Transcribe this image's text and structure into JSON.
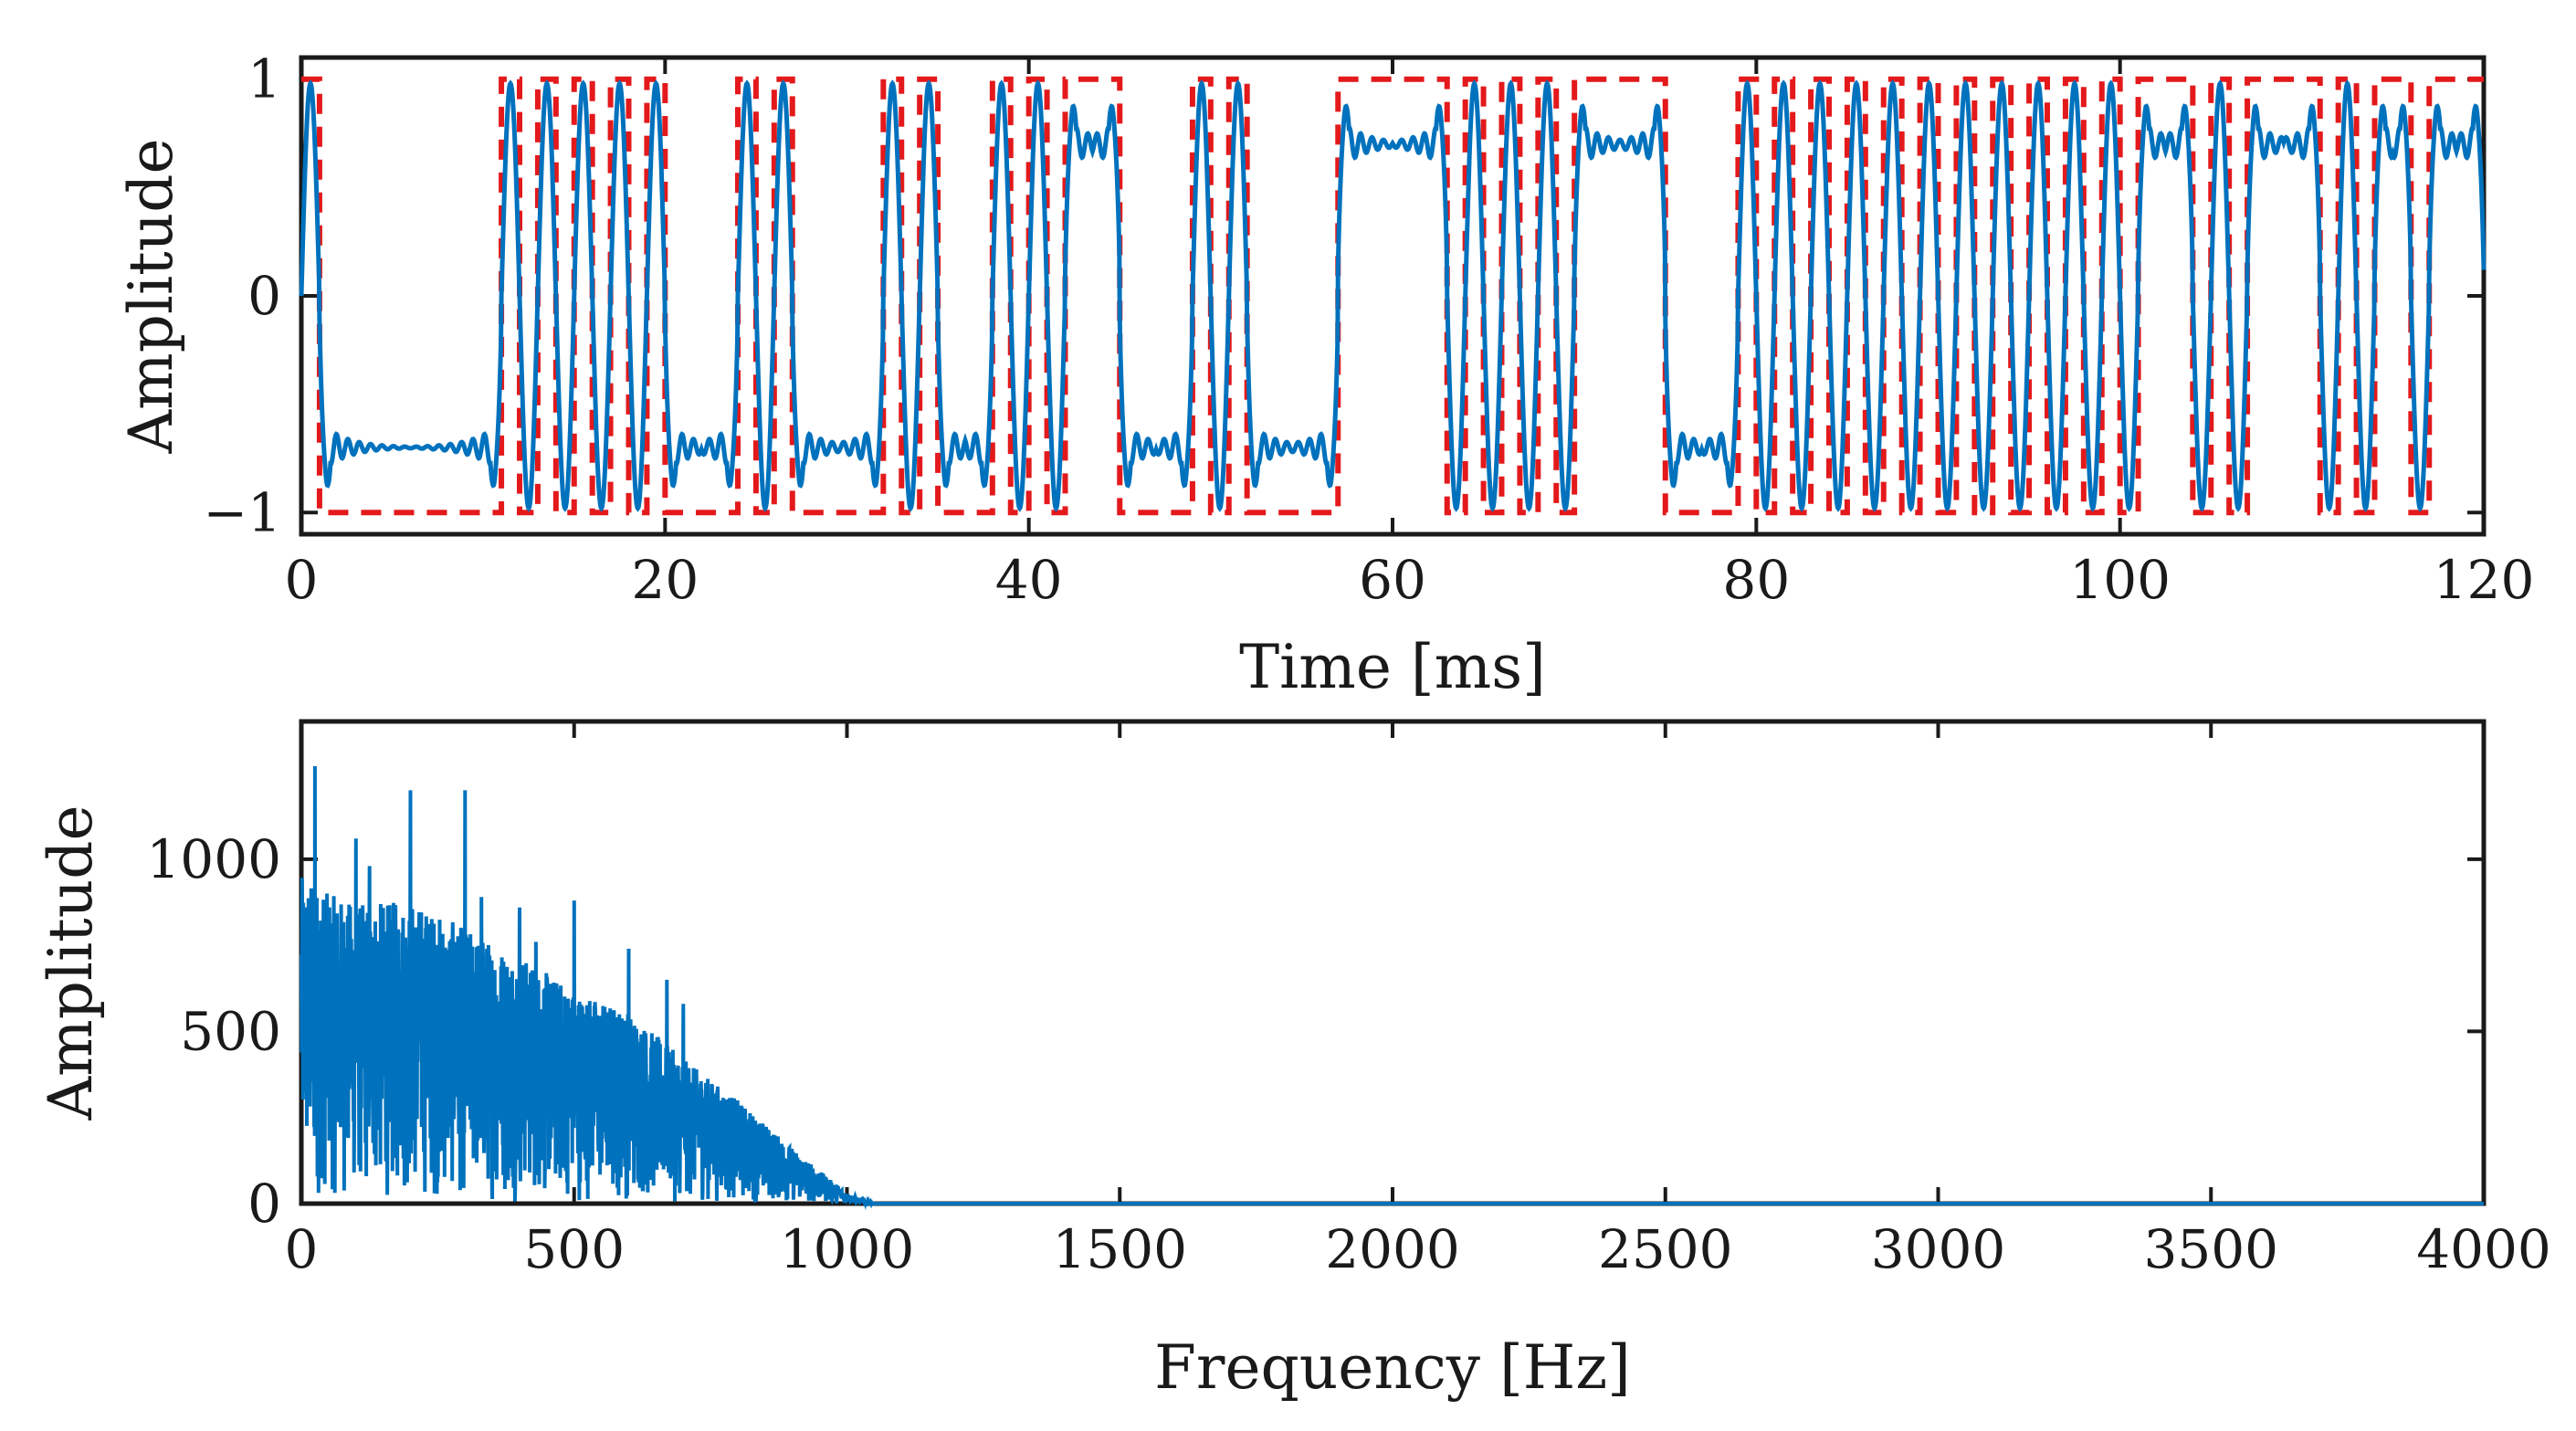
{
  "chart_data": [
    {
      "type": "line",
      "panel": "top",
      "xlabel": "Time [ms]",
      "ylabel": "Amplitude",
      "xlim": [
        0,
        120
      ],
      "ylim": [
        -1.1,
        1.1
      ],
      "xticks": [
        0,
        20,
        40,
        60,
        80,
        100,
        120
      ],
      "xtick_labels": [
        "0",
        "20",
        "40",
        "60",
        "80",
        "100",
        "120"
      ],
      "yticks": [
        -1,
        0,
        1
      ],
      "ytick_labels": [
        "−1",
        "0",
        "1"
      ],
      "grid": false,
      "series": [
        {
          "name": "binary square wave",
          "style": "dashed",
          "color": "#e3191b",
          "bit_period_ms": 1.0,
          "levels": [
            1,
            -1
          ],
          "transition_times_ms": [
            0,
            1,
            11,
            12,
            13,
            14,
            15,
            16,
            17,
            18,
            19,
            20,
            24,
            25,
            26,
            27,
            32,
            33,
            34,
            35,
            38,
            39,
            40,
            41,
            42,
            45,
            49,
            50,
            51,
            52,
            57,
            63,
            64,
            65,
            66,
            67,
            68,
            69,
            70,
            75,
            79,
            80,
            81,
            82,
            83,
            84,
            85,
            86,
            87,
            88,
            89,
            90,
            91,
            92,
            93,
            94,
            95,
            96,
            97,
            98,
            99,
            100,
            101,
            104,
            105,
            106,
            107,
            111,
            112,
            113,
            114,
            116,
            117,
            120
          ]
        },
        {
          "name": "band-limited signal",
          "style": "solid",
          "color": "#0072bd",
          "peak_amplitude": 1.0,
          "plateau_level": 0.7,
          "description_source": "low-pass filtered version of the square wave"
        }
      ]
    },
    {
      "type": "line",
      "panel": "bottom",
      "xlabel": "Frequency [Hz]",
      "ylabel": "Amplitude",
      "xlim": [
        0,
        4000
      ],
      "ylim": [
        0,
        1400
      ],
      "xticks": [
        0,
        500,
        1000,
        1500,
        2000,
        2500,
        3000,
        3500,
        4000
      ],
      "xtick_labels": [
        "0",
        "500",
        "1000",
        "1500",
        "2000",
        "2500",
        "3000",
        "3500",
        "4000"
      ],
      "yticks": [
        0,
        500,
        1000
      ],
      "ytick_labels": [
        "0",
        "500",
        "1000"
      ],
      "grid": false,
      "series": [
        {
          "name": "magnitude spectrum",
          "color": "#0072bd",
          "envelope": [
            {
              "f": 0,
              "amp": 950
            },
            {
              "f": 50,
              "amp": 900
            },
            {
              "f": 100,
              "amp": 870
            },
            {
              "f": 200,
              "amp": 880
            },
            {
              "f": 300,
              "amp": 800
            },
            {
              "f": 400,
              "amp": 720
            },
            {
              "f": 500,
              "amp": 620
            },
            {
              "f": 600,
              "amp": 560
            },
            {
              "f": 700,
              "amp": 420
            },
            {
              "f": 800,
              "amp": 300
            },
            {
              "f": 900,
              "amp": 160
            },
            {
              "f": 1000,
              "amp": 30
            },
            {
              "f": 1050,
              "amp": 0
            },
            {
              "f": 4000,
              "amp": 0
            }
          ],
          "peaks": [
            {
              "f": 25,
              "amp": 1270
            },
            {
              "f": 100,
              "amp": 1060
            },
            {
              "f": 125,
              "amp": 980
            },
            {
              "f": 200,
              "amp": 1200
            },
            {
              "f": 300,
              "amp": 1200
            },
            {
              "f": 330,
              "amp": 890
            },
            {
              "f": 400,
              "amp": 860
            },
            {
              "f": 430,
              "amp": 760
            },
            {
              "f": 500,
              "amp": 880
            },
            {
              "f": 600,
              "amp": 740
            },
            {
              "f": 670,
              "amp": 650
            },
            {
              "f": 700,
              "amp": 580
            }
          ]
        }
      ]
    }
  ]
}
